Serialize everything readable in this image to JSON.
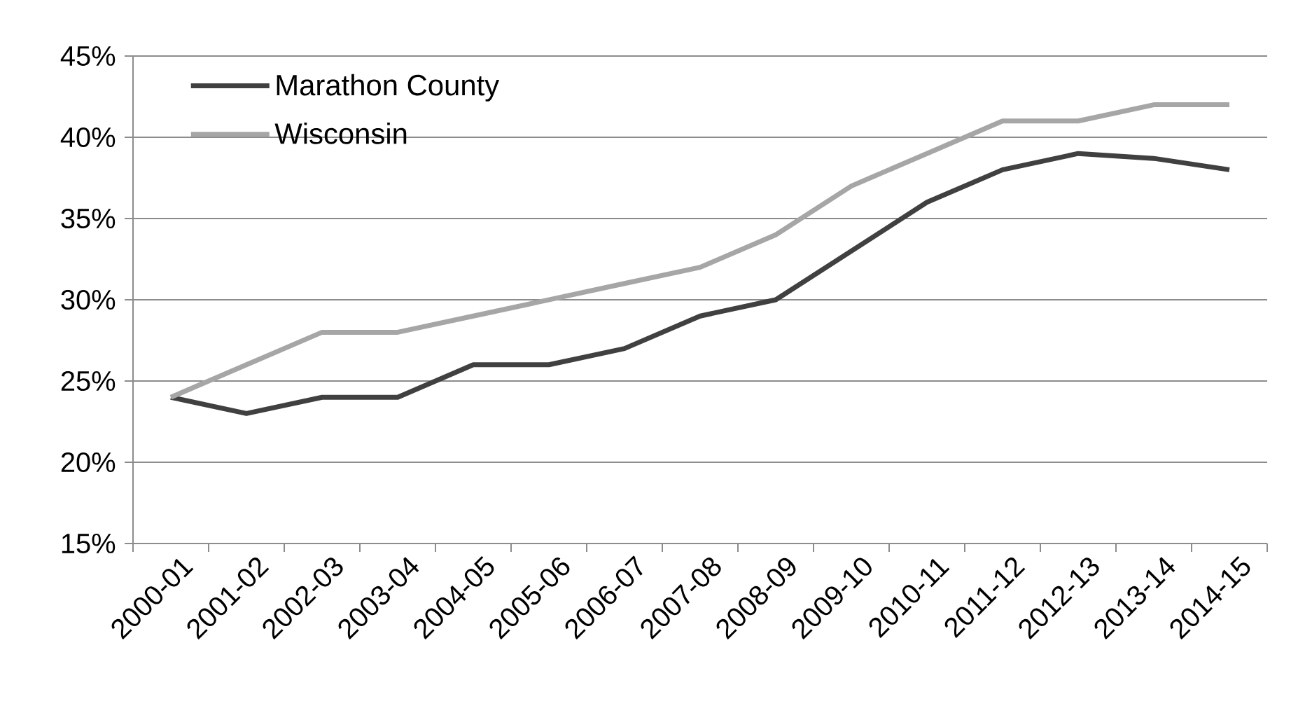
{
  "chart_data": {
    "type": "line",
    "categories": [
      "2000-01",
      "2001-02",
      "2002-03",
      "2003-04",
      "2004-05",
      "2005-06",
      "2006-07",
      "2007-08",
      "2008-09",
      "2009-10",
      "2010-11",
      "2011-12",
      "2012-13",
      "2013-14",
      "2014-15"
    ],
    "series": [
      {
        "name": "Marathon County",
        "color": "#404040",
        "values": [
          24,
          23,
          24,
          24,
          26,
          26,
          27,
          29,
          30,
          33,
          36,
          38,
          39,
          38.7,
          38
        ]
      },
      {
        "name": "Wisconsin",
        "color": "#a6a6a6",
        "values": [
          24,
          26,
          28,
          28,
          29,
          30,
          31,
          32,
          34,
          37,
          39,
          41,
          41,
          42,
          42
        ]
      }
    ],
    "ylim": [
      15,
      45
    ],
    "yticks": [
      {
        "value": 15,
        "label": "15%"
      },
      {
        "value": 20,
        "label": "20%"
      },
      {
        "value": 25,
        "label": "25%"
      },
      {
        "value": 30,
        "label": "30%"
      },
      {
        "value": 35,
        "label": "35%"
      },
      {
        "value": 40,
        "label": "40%"
      },
      {
        "value": 45,
        "label": "45%"
      }
    ],
    "grid": "y",
    "legend": "top left",
    "marker": "none",
    "line_style": "solid"
  }
}
